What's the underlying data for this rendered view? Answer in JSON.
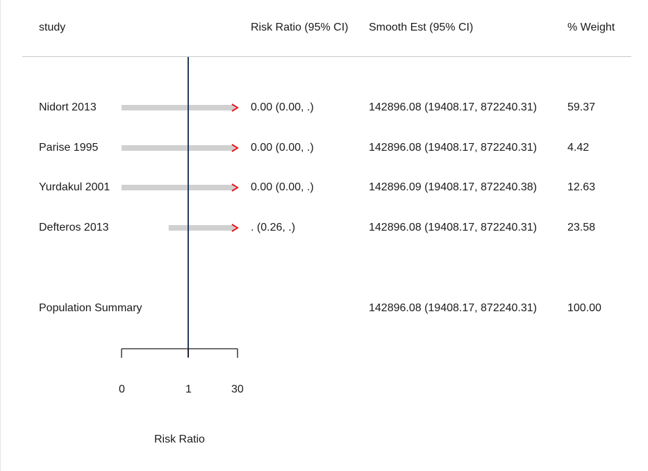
{
  "header": {
    "study": "study",
    "risk_ratio": "Risk Ratio (95% CI)",
    "smooth_est": "Smooth Est (95% CI)",
    "weight": "% Weight"
  },
  "rows": [
    {
      "study": "Nidort 2013",
      "rr_ci": "0.00 (0.00, .)",
      "smooth": "142896.08 (19408.17, 872240.31)",
      "weight": "59.37"
    },
    {
      "study": "Parise 1995",
      "rr_ci": "0.00 (0.00, .)",
      "smooth": "142896.08 (19408.17, 872240.31)",
      "weight": "4.42"
    },
    {
      "study": "Yurdakul 2001",
      "rr_ci": "0.00 (0.00, .)",
      "smooth": "142896.09 (19408.17, 872240.38)",
      "weight": "12.63"
    },
    {
      "study": "Defteros 2013",
      "rr_ci": ". (0.26, .)",
      "smooth": "142896.08 (19408.17, 872240.31)",
      "weight": "23.58"
    }
  ],
  "summary": {
    "label": "Population Summary",
    "smooth": "142896.08 (19408.17, 872240.31)",
    "weight": "100.00"
  },
  "colors": {
    "ci_bar": "#d0d0d0",
    "arrow": "#e8141c",
    "reference_line": "#1f3a5a",
    "axis": "#1a1a1a",
    "rule": "#c8c8c8"
  },
  "chart_data": {
    "type": "forest",
    "xlabel": "Risk Ratio",
    "x_scale": "log",
    "ticks": [
      "0",
      "1",
      "30"
    ],
    "reference_value": 1,
    "studies": [
      {
        "name": "Nidort 2013",
        "estimate": 0.0,
        "ci_low": 0.0,
        "ci_high": null,
        "arrow_right": true
      },
      {
        "name": "Parise 1995",
        "estimate": 0.0,
        "ci_low": 0.0,
        "ci_high": null,
        "arrow_right": true
      },
      {
        "name": "Yurdakul 2001",
        "estimate": 0.0,
        "ci_low": 0.0,
        "ci_high": null,
        "arrow_right": true
      },
      {
        "name": "Defteros 2013",
        "estimate": null,
        "ci_low": 0.26,
        "ci_high": null,
        "arrow_right": true
      }
    ]
  }
}
